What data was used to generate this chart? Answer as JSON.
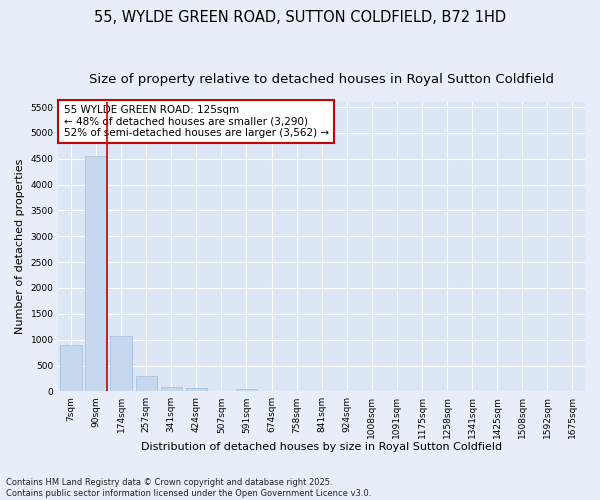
{
  "title": "55, WYLDE GREEN ROAD, SUTTON COLDFIELD, B72 1HD",
  "subtitle": "Size of property relative to detached houses in Royal Sutton Coldfield",
  "xlabel": "Distribution of detached houses by size in Royal Sutton Coldfield",
  "ylabel": "Number of detached properties",
  "categories": [
    "7sqm",
    "90sqm",
    "174sqm",
    "257sqm",
    "341sqm",
    "424sqm",
    "507sqm",
    "591sqm",
    "674sqm",
    "758sqm",
    "841sqm",
    "924sqm",
    "1008sqm",
    "1091sqm",
    "1175sqm",
    "1258sqm",
    "1341sqm",
    "1425sqm",
    "1508sqm",
    "1592sqm",
    "1675sqm"
  ],
  "values": [
    900,
    4560,
    1080,
    300,
    80,
    60,
    0,
    55,
    0,
    0,
    0,
    0,
    0,
    0,
    0,
    0,
    0,
    0,
    0,
    0,
    0
  ],
  "bar_color": "#c5d8ee",
  "bar_edge_color": "#a0bcd8",
  "vline_color": "#cc0000",
  "annotation_text": "55 WYLDE GREEN ROAD: 125sqm\n← 48% of detached houses are smaller (3,290)\n52% of semi-detached houses are larger (3,562) →",
  "annotation_box_color": "#ffffff",
  "annotation_box_edge": "#cc0000",
  "ylim": [
    0,
    5600
  ],
  "yticks": [
    0,
    500,
    1000,
    1500,
    2000,
    2500,
    3000,
    3500,
    4000,
    4500,
    5000,
    5500
  ],
  "plot_bg_color": "#dce6f5",
  "fig_bg_color": "#e8eef8",
  "grid_color": "#ffffff",
  "footer": "Contains HM Land Registry data © Crown copyright and database right 2025.\nContains public sector information licensed under the Open Government Licence v3.0.",
  "title_fontsize": 10.5,
  "subtitle_fontsize": 9.5,
  "tick_fontsize": 6.5,
  "ylabel_fontsize": 8,
  "xlabel_fontsize": 8,
  "annotation_fontsize": 7.5,
  "footer_fontsize": 6
}
